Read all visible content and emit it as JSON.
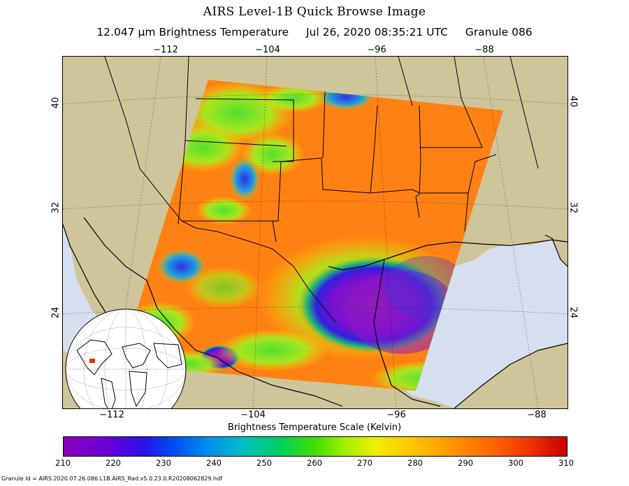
{
  "title": "AIRS Level-1B Quick Browse Image",
  "subtitle": {
    "band": "12.047 μm Brightness Temperature",
    "datetime": "Jul 26, 2020 08:35:21 UTC",
    "granule": "Granule 086"
  },
  "axes": {
    "top_lon": [
      "−112",
      "−104",
      "−96",
      "−88"
    ],
    "bottom_lon": [
      "−112",
      "−104",
      "−96",
      "−88"
    ],
    "left_lat": [
      "40",
      "32",
      "24"
    ],
    "right_lat": [
      "40",
      "32",
      "24"
    ]
  },
  "colorbar": {
    "label": "Brightness Temperature Scale (Kelvin)",
    "ticks": [
      "210",
      "220",
      "230",
      "240",
      "250",
      "260",
      "270",
      "280",
      "290",
      "300",
      "310"
    ],
    "range": [
      210,
      310
    ]
  },
  "footer": "Granule Id = AIRS.2020.07.26.086.L1B.AIRS_Rad.v5.0.23.0.R20208062829.hdf",
  "colors": {
    "land": "#cfc59a",
    "water": "#d6dff0",
    "orange": "#ff7a10",
    "hurricane": "#8a18c8"
  }
}
